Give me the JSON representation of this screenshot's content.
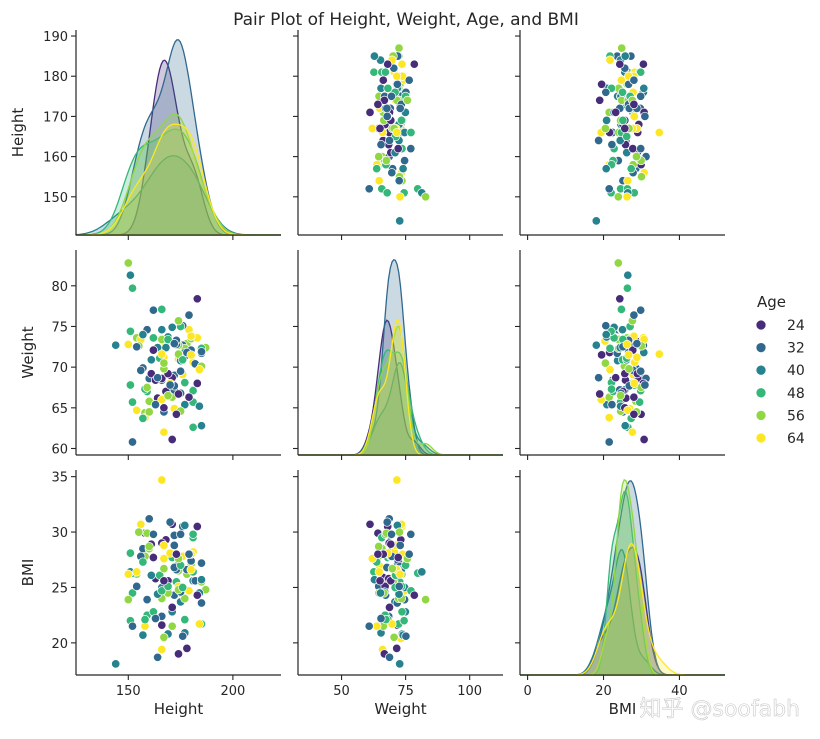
{
  "chart_data": {
    "type": "pairplot",
    "title": "Pair Plot of Height, Weight, Age, and BMI",
    "variables": [
      "Height",
      "Weight",
      "BMI"
    ],
    "hue": "Age",
    "palette": "viridis",
    "diag_kind": "kde",
    "legend": {
      "title": "Age",
      "placement": "right",
      "entries": [
        {
          "label": "24",
          "color": "#472c7a"
        },
        {
          "label": "32",
          "color": "#31688e"
        },
        {
          "label": "40",
          "color": "#26828e"
        },
        {
          "label": "48",
          "color": "#35b779"
        },
        {
          "label": "56",
          "color": "#90d743"
        },
        {
          "label": "64",
          "color": "#fde725"
        }
      ]
    },
    "axes": {
      "Height": {
        "label": "Height",
        "range": [
          140.5,
          191.5
        ],
        "pair_range": [
          125,
          223
        ],
        "ticks": [
          150,
          160,
          170,
          180,
          190
        ],
        "pair_ticks": [
          150,
          200
        ]
      },
      "Weight": {
        "label": "Weight",
        "range": [
          59.2,
          84.4
        ],
        "pair_range": [
          33,
          113
        ],
        "ticks": [
          60,
          65,
          70,
          75,
          80
        ],
        "pair_ticks": [
          50,
          75,
          100
        ]
      },
      "BMI": {
        "label": "BMI",
        "range": [
          17.1,
          35.6
        ],
        "pair_range": [
          -2,
          52
        ],
        "ticks": [
          20,
          25,
          30,
          35
        ],
        "pair_ticks": [
          0,
          20,
          40
        ]
      }
    },
    "points": [
      [
        157,
        69.9,
        28.5,
        1
      ],
      [
        178,
        72.9,
        26.2,
        4
      ],
      [
        152,
        65.7,
        24.5,
        3
      ],
      [
        181,
        62.6,
        26.4,
        3
      ],
      [
        159,
        74.6,
        23.9,
        1
      ],
      [
        169,
        73.2,
        24.7,
        3
      ],
      [
        173,
        72.7,
        25.5,
        3
      ],
      [
        172,
        69.0,
        29.7,
        1
      ],
      [
        177,
        65.4,
        20.9,
        2
      ],
      [
        158,
        64.2,
        29.9,
        0
      ],
      [
        181,
        67.2,
        25.6,
        2
      ],
      [
        171,
        68.0,
        27.7,
        3
      ],
      [
        160,
        65.8,
        28.5,
        4
      ],
      [
        166,
        68.4,
        22.4,
        1
      ],
      [
        158,
        64.4,
        27.8,
        4
      ],
      [
        179,
        74.6,
        24.7,
        5
      ],
      [
        171,
        66.3,
        21.5,
        4
      ],
      [
        154,
        73.6,
        26.2,
        4
      ],
      [
        166,
        71.8,
        21.6,
        0
      ],
      [
        187,
        72.4,
        24.8,
        4
      ],
      [
        168,
        73.1,
        29.3,
        0
      ],
      [
        167,
        73.2,
        20.4,
        5
      ],
      [
        181,
        70.6,
        28.2,
        5
      ],
      [
        182,
        70.4,
        25.6,
        1
      ],
      [
        180,
        73.5,
        27.1,
        4
      ],
      [
        176,
        72.7,
        30.5,
        1
      ],
      [
        167,
        64.5,
        25.1,
        1
      ],
      [
        160,
        68.6,
        31.2,
        1
      ],
      [
        151,
        67.8,
        28.1,
        3
      ],
      [
        172,
        64.9,
        26.9,
        5
      ],
      [
        174,
        71.0,
        25.1,
        5
      ],
      [
        164,
        66.2,
        25.9,
        0
      ],
      [
        175,
        70.8,
        23.7,
        2
      ],
      [
        185,
        71.7,
        23.6,
        1
      ],
      [
        183,
        73.6,
        30.5,
        5
      ],
      [
        158,
        63.8,
        21.5,
        5
      ],
      [
        166,
        68.6,
        29.0,
        0
      ],
      [
        175,
        64.6,
        24.5,
        4
      ],
      [
        156,
        73.4,
        30.7,
        5
      ],
      [
        159,
        67.0,
        22.5,
        3
      ],
      [
        185,
        72.3,
        21.7,
        3
      ],
      [
        168,
        72.4,
        24.6,
        2
      ],
      [
        185,
        71.9,
        27.2,
        1
      ],
      [
        169,
        73.7,
        20.8,
        2
      ],
      [
        176,
        69.1,
        27.8,
        5
      ],
      [
        177,
        72.3,
        24.0,
        4
      ],
      [
        181,
        65.7,
        29.5,
        3
      ],
      [
        177,
        68.1,
        22.1,
        3
      ],
      [
        177,
        71.8,
        30.6,
        2
      ],
      [
        172,
        67.2,
        24.3,
        1
      ],
      [
        185,
        70.1,
        25.5,
        4
      ],
      [
        167,
        71.2,
        28.8,
        5
      ],
      [
        184,
        69.7,
        21.7,
        5
      ],
      [
        168,
        67.0,
        25.1,
        0
      ],
      [
        180,
        72.1,
        27.4,
        1
      ],
      [
        175,
        66.8,
        24.6,
        1
      ],
      [
        171,
        74.9,
        22.8,
        2
      ],
      [
        158,
        67.3,
        22.1,
        3
      ],
      [
        183,
        68.0,
        30.5,
        0
      ],
      [
        174,
        72.7,
        24.8,
        4
      ],
      [
        181,
        67.1,
        29.8,
        3
      ],
      [
        166,
        73.4,
        24.0,
        4
      ],
      [
        162,
        73.6,
        22.8,
        3
      ],
      [
        166,
        74.6,
        25.0,
        2
      ],
      [
        173,
        72.8,
        26.9,
        1
      ],
      [
        174,
        71.6,
        26.5,
        4
      ],
      [
        156,
        69.6,
        27.8,
        1
      ],
      [
        178,
        71.5,
        19.5,
        0
      ],
      [
        157,
        63.7,
        27.3,
        3
      ],
      [
        171,
        68.7,
        23.2,
        0
      ],
      [
        166,
        66.0,
        19.4,
        5
      ],
      [
        152,
        79.7,
        26.3,
        3
      ],
      [
        161,
        69.2,
        28.9,
        0
      ],
      [
        151,
        74.4,
        22.0,
        3
      ],
      [
        180,
        73.8,
        28.0,
        5
      ],
      [
        159,
        67.5,
        29.9,
        4
      ],
      [
        173,
        73.3,
        26.6,
        1
      ],
      [
        169,
        66.5,
        24.5,
        4
      ],
      [
        163,
        68.4,
        25.8,
        0
      ],
      [
        160,
        64.5,
        28.7,
        4
      ],
      [
        152,
        60.8,
        21.5,
        1
      ],
      [
        169,
        69.2,
        25.6,
        0
      ],
      [
        164,
        72.4,
        24.4,
        2
      ],
      [
        163,
        65.4,
        22.2,
        1
      ],
      [
        144,
        72.7,
        18.1,
        2
      ],
      [
        157,
        74.0,
        20.7,
        2
      ],
      [
        176,
        70.9,
        25.0,
        3
      ],
      [
        166,
        77.1,
        24.7,
        3
      ],
      [
        172,
        67.7,
        26.8,
        1
      ],
      [
        167,
        62.0,
        27.6,
        5
      ],
      [
        151,
        81.3,
        26.4,
        2
      ],
      [
        150,
        82.8,
        23.9,
        4
      ],
      [
        170,
        68.0,
        28.1,
        5
      ],
      [
        174,
        66.7,
        19.0,
        0
      ],
      [
        176,
        75.1,
        20.6,
        1
      ],
      [
        161,
        70.9,
        26.1,
        2
      ],
      [
        165,
        71.1,
        26.1,
        3
      ],
      [
        184,
        65.2,
        24.5,
        2
      ],
      [
        178,
        71.8,
        26.6,
        1
      ],
      [
        162,
        72.1,
        27.7,
        0
      ],
      [
        155,
        72.6,
        30.0,
        4
      ],
      [
        180,
        71.5,
        26.6,
        5
      ],
      [
        175,
        75.0,
        27.0,
        3
      ],
      [
        185,
        62.8,
        25.7,
        2
      ],
      [
        169,
        73.4,
        25.1,
        3
      ],
      [
        171,
        61.1,
        30.7,
        0
      ],
      [
        154,
        72.5,
        25.1,
        1
      ],
      [
        167,
        69.8,
        26.7,
        4
      ],
      [
        179,
        66.3,
        28.0,
        0
      ],
      [
        174,
        75.7,
        27.6,
        4
      ],
      [
        167,
        65.0,
        25.6,
        0
      ],
      [
        154,
        64.7,
        26.4,
        5
      ],
      [
        183,
        78.4,
        24.3,
        0
      ],
      [
        162,
        77.0,
        29.8,
        1
      ],
      [
        179,
        76.4,
        28.0,
        1
      ],
      [
        164,
        68.7,
        18.7,
        1
      ],
      [
        175,
        69.5,
        29.8,
        1
      ],
      [
        170,
        67.8,
        30.9,
        1
      ],
      [
        172,
        72.9,
        28.8,
        1
      ],
      [
        167,
        70.5,
        20.5,
        4
      ],
      [
        166,
        71.6,
        34.7,
        5
      ],
      [
        173,
        64.2,
        28.0,
        0
      ],
      [
        150,
        72.8,
        26.2,
        5
      ]
    ]
  }
}
